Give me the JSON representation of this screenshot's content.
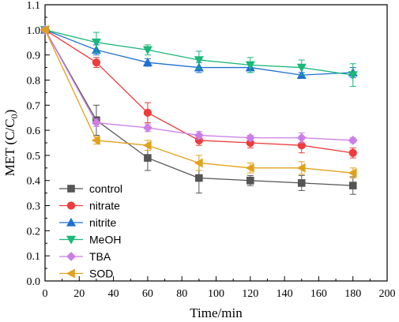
{
  "chart_data": {
    "type": "line",
    "xlabel": "Time/min",
    "ylabel_main": "MET (C/C",
    "ylabel_sub": "0",
    "ylabel_close": ")",
    "xlim": [
      0,
      200
    ],
    "ylim": [
      0.0,
      1.1
    ],
    "xticks": [
      0,
      20,
      40,
      60,
      80,
      100,
      120,
      140,
      160,
      180,
      200
    ],
    "yticks": [
      0.0,
      0.1,
      0.2,
      0.3,
      0.4,
      0.5,
      0.6,
      0.7,
      0.8,
      0.9,
      1.0,
      1.1
    ],
    "x": [
      0,
      30,
      60,
      90,
      120,
      150,
      180
    ],
    "legend_position": "bottom-left",
    "grid": false,
    "series": [
      {
        "name": "control",
        "color": "#555555",
        "marker": "square",
        "values": [
          1.0,
          0.64,
          0.49,
          0.41,
          0.4,
          0.39,
          0.38
        ],
        "errors": [
          0.01,
          0.06,
          0.05,
          0.06,
          0.02,
          0.03,
          0.035
        ]
      },
      {
        "name": "nitrate",
        "color": "#ee3b3b",
        "marker": "circle",
        "values": [
          1.0,
          0.87,
          0.67,
          0.56,
          0.55,
          0.54,
          0.51
        ],
        "errors": [
          0.01,
          0.02,
          0.04,
          0.02,
          0.02,
          0.03,
          0.02
        ]
      },
      {
        "name": "nitrite",
        "color": "#1f6fd6",
        "marker": "triangle-up",
        "values": [
          1.0,
          0.92,
          0.87,
          0.85,
          0.85,
          0.82,
          0.83
        ],
        "errors": [
          0.01,
          0.02,
          0.015,
          0.02,
          0.02,
          0.01,
          0.02
        ]
      },
      {
        "name": "MeOH",
        "color": "#1ab87a",
        "marker": "triangle-down",
        "values": [
          1.0,
          0.95,
          0.92,
          0.88,
          0.86,
          0.85,
          0.82
        ],
        "errors": [
          0.01,
          0.04,
          0.02,
          0.035,
          0.03,
          0.03,
          0.045
        ]
      },
      {
        "name": "TBA",
        "color": "#cc7ee8",
        "marker": "diamond",
        "values": [
          1.0,
          0.63,
          0.61,
          0.58,
          0.57,
          0.57,
          0.56
        ],
        "errors": [
          0.01,
          0.015,
          0.015,
          0.015,
          0.01,
          0.02,
          0.01
        ]
      },
      {
        "name": "SOD",
        "color": "#e0a21c",
        "marker": "triangle-left",
        "values": [
          1.0,
          0.56,
          0.54,
          0.47,
          0.45,
          0.45,
          0.43
        ],
        "errors": [
          0.01,
          0.015,
          0.02,
          0.03,
          0.02,
          0.025,
          0.02
        ]
      }
    ]
  }
}
